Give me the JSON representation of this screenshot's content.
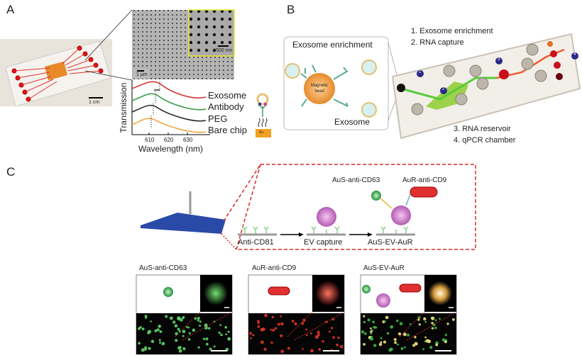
{
  "panel_a": {
    "label": "A",
    "chip_scale": "1 cm",
    "sem_scale": "1 μm",
    "inset_scale": "500 nm",
    "ylabel": "Transmission",
    "xlabel": "Wavelength (nm)",
    "xticks": [
      "610",
      "620",
      "630"
    ],
    "curves": [
      {
        "name": "Exosome",
        "color": "#d62b2b"
      },
      {
        "name": "Antibody",
        "color": "#2e9a3e"
      },
      {
        "name": "PEG",
        "color": "#222222"
      },
      {
        "name": "Bare chip",
        "color": "#f0a030"
      }
    ],
    "substrate_label": "Au"
  },
  "panel_b": {
    "label": "B",
    "box_title": "Exosome enrichment",
    "bead_label": "Magnetic bead",
    "exosome_label": "Exosome",
    "steps_top": [
      "1. Exosome enrichment",
      "2. RNA capture"
    ],
    "steps_bottom": [
      "3. RNA reservoir",
      "4. qPCR chamber"
    ],
    "markers": [
      "1",
      "2",
      "3",
      "4"
    ]
  },
  "panel_c": {
    "label": "C",
    "probe_labels": [
      "AuS-anti-CD63",
      "AuR-anti-CD9"
    ],
    "steps": [
      "Anti-CD81",
      "EV capture",
      "AuS-EV-AuR"
    ],
    "images": [
      {
        "title": "AuS-anti-CD63",
        "color": "#5fd36a"
      },
      {
        "title": "AuR-anti-CD9",
        "color": "#e2352a"
      },
      {
        "title": "AuS-EV-AuR",
        "color": "#f3e07a"
      }
    ],
    "accent": "#d62b2b"
  }
}
